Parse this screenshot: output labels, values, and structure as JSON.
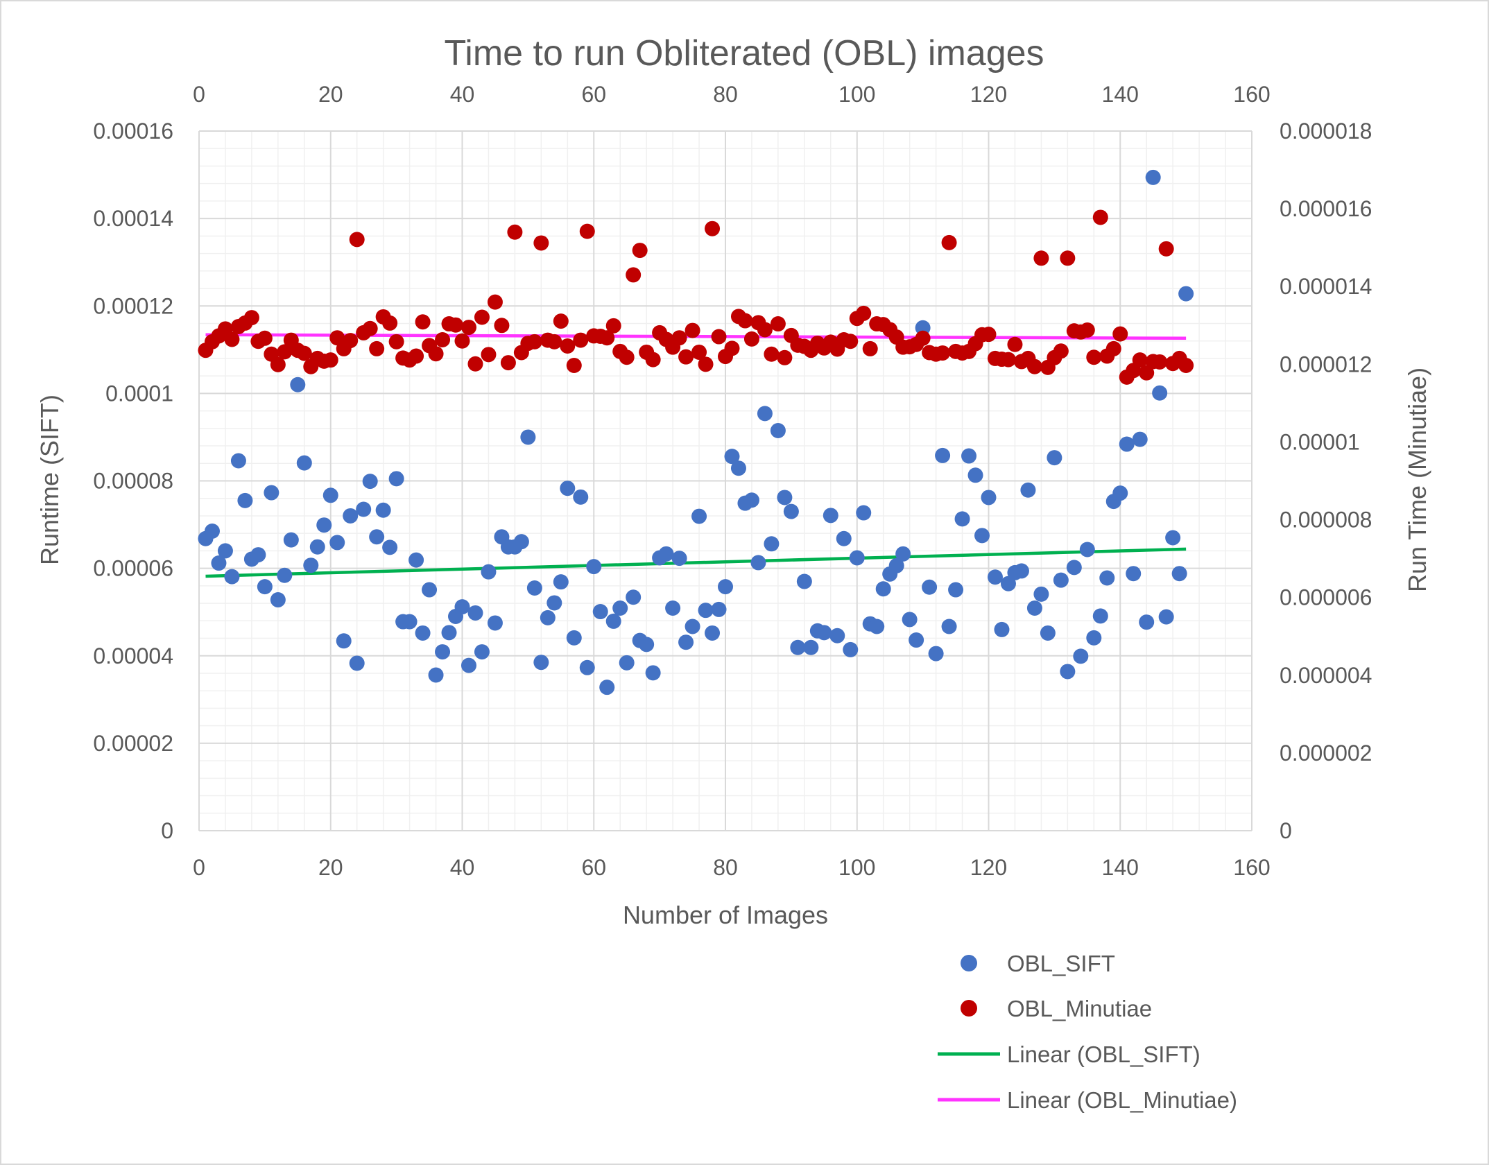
{
  "chart_data": {
    "type": "scatter",
    "title": "Time to run Obliterated (OBL) images",
    "xlabel": "Number of Images",
    "ylabel": "Runtime (SIFT)",
    "y2label": "Run Time (Minutiae)",
    "xlim": [
      0,
      160
    ],
    "x_ticks": [
      0,
      20,
      40,
      60,
      80,
      100,
      120,
      140,
      160
    ],
    "x_tick_labels": [
      "0",
      "20",
      "40",
      "60",
      "80",
      "100",
      "120",
      "140",
      "160"
    ],
    "ylim": [
      0,
      0.00016
    ],
    "y_ticks": [
      0,
      2e-05,
      4e-05,
      6e-05,
      8e-05,
      0.0001,
      0.00012,
      0.00014,
      0.00016
    ],
    "y_tick_labels": [
      "0",
      "0.00002",
      "0.00004",
      "0.00006",
      "0.00008",
      "0.0001",
      "0.00012",
      "0.00014",
      "0.00016"
    ],
    "y2lim": [
      0,
      1.8e-05
    ],
    "y2_ticks": [
      0,
      2e-06,
      4e-06,
      6e-06,
      8e-06,
      1e-05,
      1.2e-05,
      1.4e-05,
      1.6e-05,
      1.8e-05
    ],
    "y2_tick_labels": [
      "0",
      "0.000002",
      "0.000004",
      "0.000006",
      "0.000008",
      "0.00001",
      "0.000012",
      "0.000014",
      "0.000016",
      "0.000018"
    ],
    "grid": true,
    "legend_position": "bottom-right",
    "colors": {
      "sift": "#4472c4",
      "minutiae": "#c00000",
      "sift_trend": "#00b050",
      "minutiae_trend": "#ff33ff"
    },
    "series": [
      {
        "name": "OBL_SIFT",
        "axis": "left",
        "x": [
          1,
          2,
          3,
          4,
          5,
          6,
          7,
          8,
          9,
          10,
          11,
          12,
          13,
          14,
          15,
          16,
          17,
          18,
          19,
          20,
          21,
          22,
          23,
          24,
          25,
          26,
          27,
          28,
          29,
          30,
          31,
          32,
          33,
          34,
          35,
          36,
          37,
          38,
          39,
          40,
          41,
          42,
          43,
          44,
          45,
          46,
          47,
          48,
          49,
          50,
          51,
          52,
          53,
          54,
          55,
          56,
          57,
          58,
          59,
          60,
          61,
          62,
          63,
          64,
          65,
          66,
          67,
          68,
          69,
          70,
          71,
          72,
          73,
          74,
          75,
          76,
          77,
          78,
          79,
          80,
          81,
          82,
          83,
          84,
          85,
          86,
          87,
          88,
          89,
          90,
          91,
          92,
          93,
          94,
          95,
          96,
          97,
          98,
          99,
          100,
          101,
          102,
          103,
          104,
          105,
          106,
          107,
          108,
          109,
          110,
          111,
          112,
          113,
          114,
          115,
          116,
          117,
          118,
          119,
          120,
          121,
          122,
          123,
          124,
          125,
          126,
          127,
          128,
          129,
          130,
          131,
          132,
          133,
          134,
          135,
          136,
          137,
          138,
          139,
          140,
          141,
          142,
          143,
          144,
          145,
          146,
          147,
          148,
          149,
          150
        ],
        "y": [
          6.68e-05,
          6.85e-05,
          6.12e-05,
          6.4e-05,
          5.81e-05,
          8.46e-05,
          7.55e-05,
          6.21e-05,
          6.31e-05,
          5.58e-05,
          7.73e-05,
          5.28e-05,
          5.84e-05,
          6.65e-05,
          0.000102,
          8.41e-05,
          6.07e-05,
          6.49e-05,
          6.99e-05,
          7.67e-05,
          6.59e-05,
          4.34e-05,
          7.2e-05,
          3.83e-05,
          7.35e-05,
          7.99e-05,
          6.72e-05,
          7.33e-05,
          6.48e-05,
          8.05e-05,
          4.78e-05,
          4.78e-05,
          6.19e-05,
          4.52e-05,
          5.51e-05,
          3.56e-05,
          4.09e-05,
          4.53e-05,
          4.9e-05,
          5.12e-05,
          3.78e-05,
          4.98e-05,
          4.09e-05,
          5.92e-05,
          4.75e-05,
          6.72e-05,
          6.49e-05,
          6.49e-05,
          6.61e-05,
          9e-05,
          5.55e-05,
          3.85e-05,
          4.87e-05,
          5.21e-05,
          5.69e-05,
          7.83e-05,
          4.41e-05,
          7.63e-05,
          3.73e-05,
          6.04e-05,
          5.01e-05,
          3.28e-05,
          4.79e-05,
          5.09e-05,
          3.84e-05,
          5.34e-05,
          4.35e-05,
          4.26e-05,
          3.61e-05,
          6.24e-05,
          6.33e-05,
          5.09e-05,
          6.23e-05,
          4.31e-05,
          4.67e-05,
          7.19e-05,
          5.04e-05,
          4.52e-05,
          5.06e-05,
          5.58e-05,
          8.56e-05,
          8.29e-05,
          7.49e-05,
          7.56e-05,
          6.13e-05,
          9.54e-05,
          6.56e-05,
          9.15e-05,
          7.62e-05,
          7.3e-05,
          4.19e-05,
          5.7e-05,
          4.19e-05,
          4.57e-05,
          4.53e-05,
          7.21e-05,
          4.46e-05,
          6.68e-05,
          4.14e-05,
          6.24e-05,
          7.27e-05,
          4.73e-05,
          4.67e-05,
          5.53e-05,
          5.87e-05,
          6.06e-05,
          6.33e-05,
          4.83e-05,
          4.36e-05,
          0.000115,
          5.57e-05,
          4.05e-05,
          8.58e-05,
          4.67e-05,
          5.51e-05,
          7.13e-05,
          8.57e-05,
          8.13e-05,
          6.75e-05,
          7.62e-05,
          5.8e-05,
          4.6e-05,
          5.65e-05,
          5.9e-05,
          5.94e-05,
          7.79e-05,
          5.09e-05,
          5.41e-05,
          4.52e-05,
          8.53e-05,
          5.73e-05,
          3.64e-05,
          6.02e-05,
          3.99e-05,
          6.43e-05,
          4.41e-05,
          4.91e-05,
          5.78e-05,
          7.53e-05,
          7.72e-05,
          8.84e-05,
          5.88e-05,
          8.95e-05,
          4.77e-05,
          0.0001494,
          0.0001001,
          4.89e-05,
          6.7e-05,
          5.88e-05,
          0.0001228
        ]
      },
      {
        "name": "OBL_Minutiae",
        "axis": "right",
        "x": [
          1,
          2,
          3,
          4,
          5,
          6,
          7,
          8,
          9,
          10,
          11,
          12,
          13,
          14,
          15,
          16,
          17,
          18,
          19,
          20,
          21,
          22,
          23,
          24,
          25,
          26,
          27,
          28,
          29,
          30,
          31,
          32,
          33,
          34,
          35,
          36,
          37,
          38,
          39,
          40,
          41,
          42,
          43,
          44,
          45,
          46,
          47,
          48,
          49,
          50,
          51,
          52,
          53,
          54,
          55,
          56,
          57,
          58,
          59,
          60,
          61,
          62,
          63,
          64,
          65,
          66,
          67,
          68,
          69,
          70,
          71,
          72,
          73,
          74,
          75,
          76,
          77,
          78,
          79,
          80,
          81,
          82,
          83,
          84,
          85,
          86,
          87,
          88,
          89,
          90,
          91,
          92,
          93,
          94,
          95,
          96,
          97,
          98,
          99,
          100,
          101,
          102,
          103,
          104,
          105,
          106,
          107,
          108,
          109,
          110,
          111,
          112,
          113,
          114,
          115,
          116,
          117,
          118,
          119,
          120,
          121,
          122,
          123,
          124,
          125,
          126,
          127,
          128,
          129,
          130,
          131,
          132,
          133,
          134,
          135,
          136,
          137,
          138,
          139,
          140,
          141,
          142,
          143,
          144,
          145,
          146,
          147,
          148,
          149,
          150
        ],
        "y": [
          1.236e-05,
          1.258e-05,
          1.273e-05,
          1.291e-05,
          1.264e-05,
          1.297e-05,
          1.306e-05,
          1.32e-05,
          1.259e-05,
          1.267e-05,
          1.226e-05,
          1.199e-05,
          1.232e-05,
          1.262e-05,
          1.236e-05,
          1.228e-05,
          1.194e-05,
          1.215e-05,
          1.208e-05,
          1.211e-05,
          1.268e-05,
          1.24e-05,
          1.261e-05,
          1.521e-05,
          1.281e-05,
          1.292e-05,
          1.24e-05,
          1.322e-05,
          1.306e-05,
          1.258e-05,
          1.216e-05,
          1.211e-05,
          1.221e-05,
          1.309e-05,
          1.248e-05,
          1.227e-05,
          1.263e-05,
          1.304e-05,
          1.301e-05,
          1.26e-05,
          1.295e-05,
          1.201e-05,
          1.321e-05,
          1.225e-05,
          1.36e-05,
          1.3e-05,
          1.204e-05,
          1.54e-05,
          1.23e-05,
          1.254e-05,
          1.258e-05,
          1.512e-05,
          1.262e-05,
          1.258e-05,
          1.311e-05,
          1.247e-05,
          1.197e-05,
          1.262e-05,
          1.542e-05,
          1.273e-05,
          1.272e-05,
          1.268e-05,
          1.299e-05,
          1.233e-05,
          1.218e-05,
          1.43e-05,
          1.493e-05,
          1.231e-05,
          1.212e-05,
          1.281e-05,
          1.264e-05,
          1.244e-05,
          1.268e-05,
          1.219e-05,
          1.287e-05,
          1.231e-05,
          1.2e-05,
          1.549e-05,
          1.271e-05,
          1.22e-05,
          1.241e-05,
          1.323e-05,
          1.312e-05,
          1.265e-05,
          1.307e-05,
          1.289e-05,
          1.226e-05,
          1.304e-05,
          1.217e-05,
          1.274e-05,
          1.249e-05,
          1.246e-05,
          1.236e-05,
          1.254e-05,
          1.242e-05,
          1.257e-05,
          1.239e-05,
          1.263e-05,
          1.259e-05,
          1.318e-05,
          1.331e-05,
          1.24e-05,
          1.304e-05,
          1.302e-05,
          1.289e-05,
          1.27e-05,
          1.244e-05,
          1.245e-05,
          1.251e-05,
          1.267e-05,
          1.23e-05,
          1.226e-05,
          1.229e-05,
          1.513e-05,
          1.233e-05,
          1.229e-05,
          1.233e-05,
          1.253e-05,
          1.276e-05,
          1.277e-05,
          1.215e-05,
          1.213e-05,
          1.212e-05,
          1.251e-05,
          1.207e-05,
          1.215e-05,
          1.194e-05,
          1.473e-05,
          1.192e-05,
          1.217e-05,
          1.234e-05,
          1.473e-05,
          1.286e-05,
          1.283e-05,
          1.288e-05,
          1.218e-05,
          1.578e-05,
          1.221e-05,
          1.24e-05,
          1.278e-05,
          1.167e-05,
          1.184e-05,
          1.211e-05,
          1.178e-05,
          1.207e-05,
          1.206e-05,
          1.497e-05,
          1.202e-05,
          1.215e-05,
          1.197e-05
        ]
      }
    ],
    "trendlines": [
      {
        "name": "Linear (OBL_SIFT)",
        "axis": "left",
        "x": [
          1,
          150
        ],
        "y": [
          5.82e-05,
          6.44e-05
        ]
      },
      {
        "name": "Linear (OBL_Minutiae)",
        "axis": "right",
        "x": [
          1,
          150
        ],
        "y": [
          1.276e-05,
          1.267e-05
        ]
      }
    ]
  }
}
